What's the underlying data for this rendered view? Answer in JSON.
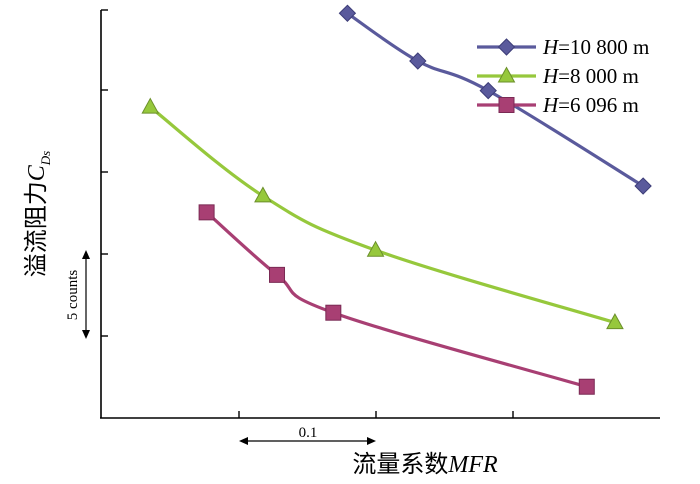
{
  "chart_data": {
    "type": "line",
    "title": "",
    "xlabel": "流量系数MFR",
    "xlabel_parts": {
      "prefix": "流量系数",
      "italic": "MFR"
    },
    "ylabel_parts": {
      "prefix": "溢流阻力",
      "italic": "C",
      "sub": "Ds"
    },
    "x_scale_label": "0.1",
    "x_scale_span": 0.1,
    "y_scale_label": "5 counts",
    "y_scale_span": 5,
    "legend_position": "top-right",
    "grid": false,
    "xlim": [
      0.305,
      0.702
    ],
    "ylim": [
      -1.4,
      23.4
    ],
    "series": [
      {
        "name_parts": {
          "var": "H",
          "value": "=10 800 m"
        },
        "color": "#5a5a9c",
        "marker": "diamond",
        "x": [
          0.48,
          0.53,
          0.58,
          0.69
        ],
        "y": [
          23.2,
          20.3,
          18.5,
          12.7
        ]
      },
      {
        "name_parts": {
          "var": "H",
          "value": "=8 000 m"
        },
        "color": "#96c83c",
        "marker": "triangle",
        "x": [
          0.34,
          0.42,
          0.5,
          0.67
        ],
        "y": [
          17.5,
          12.1,
          8.8,
          4.4
        ]
      },
      {
        "name_parts": {
          "var": "H",
          "value": "=6 096 m"
        },
        "color": "#a83f73",
        "marker": "square",
        "x": [
          0.38,
          0.43,
          0.47,
          0.65
        ],
        "y": [
          11.1,
          7.3,
          5.0,
          0.5
        ]
      }
    ]
  }
}
